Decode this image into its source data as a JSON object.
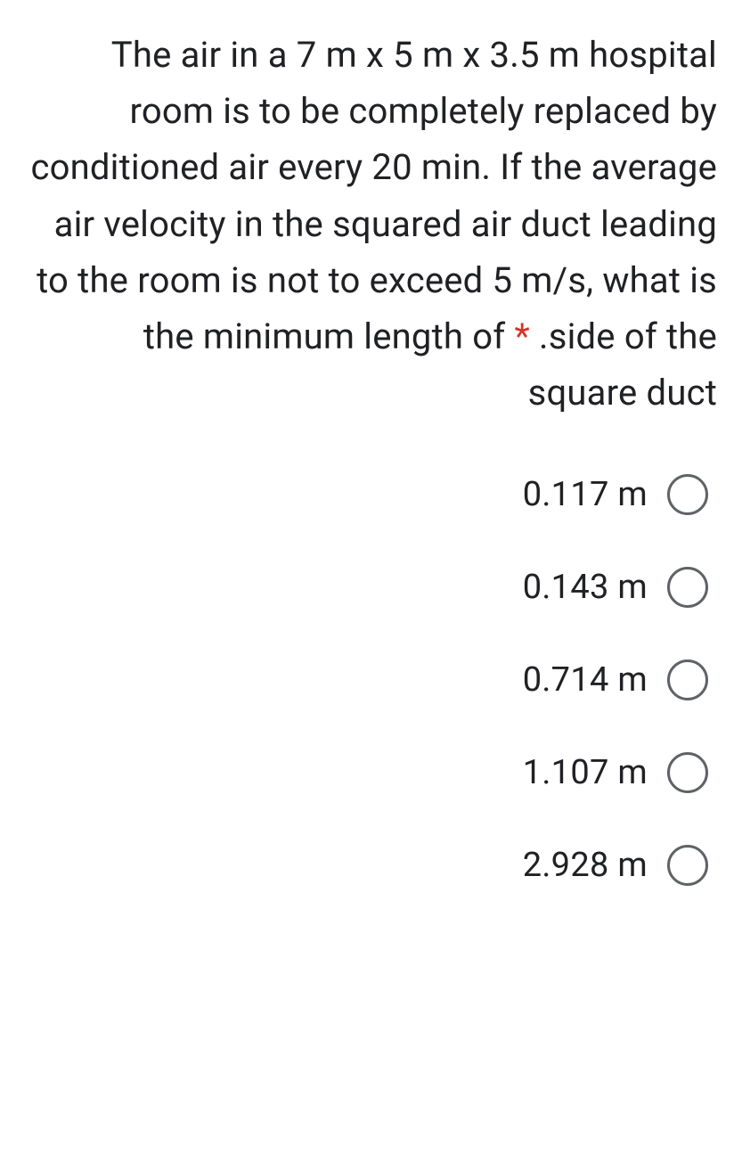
{
  "question": {
    "text_before": "The air in a 7 m x 5 m x 3.5 m hospital room is to be completely replaced by conditioned air every 20 min. If the average air velocity in the squared air duct leading to the room is not to exceed 5 m/s, what is the minimum length of ",
    "text_after": " .side of the square duct",
    "required_marker": "*"
  },
  "options": [
    {
      "label": "0.117 m"
    },
    {
      "label": "0.143 m"
    },
    {
      "label": "0.714 m"
    },
    {
      "label": "1.107 m"
    },
    {
      "label": "2.928 m"
    }
  ],
  "styling": {
    "background_color": "#ffffff",
    "text_color": "#202124",
    "required_color": "#d93025",
    "radio_border_color": "#5f6368",
    "question_fontsize": 40,
    "option_fontsize": 38,
    "radio_size": 46,
    "radio_border_width": 3
  }
}
